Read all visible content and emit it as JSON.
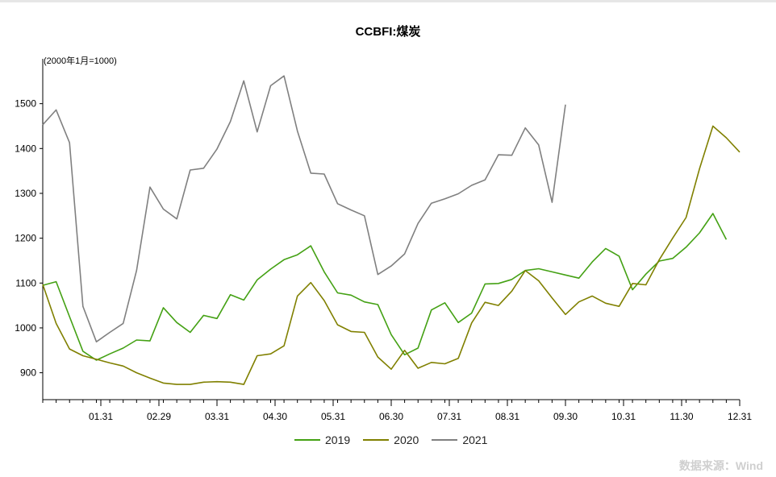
{
  "chart_data": {
    "type": "line",
    "title": "CCBFI:煤炭",
    "unit_note": "(2000年1月=1000)",
    "xlabel": "",
    "ylabel": "",
    "x_tick_labels": [
      "01.31",
      "02.29",
      "03.31",
      "04.30",
      "05.31",
      "06.30",
      "07.31",
      "08.31",
      "09.30",
      "10.31",
      "11.30",
      "12.31"
    ],
    "y_ticks": [
      900,
      1000,
      1100,
      1200,
      1300,
      1400,
      1500
    ],
    "ylim": [
      840,
      1600
    ],
    "xlim": [
      0,
      52
    ],
    "grid": false,
    "legend_position": "bottom-center",
    "series": [
      {
        "name": "2019",
        "color": "#44a114",
        "x": [
          0,
          1,
          2,
          3,
          4,
          5,
          6,
          7,
          8,
          9,
          10,
          11,
          12,
          13,
          14,
          15,
          16,
          17,
          18,
          19,
          20,
          21,
          22,
          23,
          24,
          25,
          26,
          27,
          28,
          29,
          30,
          31,
          32,
          33,
          34,
          35,
          36,
          37,
          38,
          39,
          40,
          41,
          42,
          43,
          44,
          45,
          46,
          47,
          48,
          49,
          50,
          51
        ],
        "values": [
          1095,
          1103,
          1025,
          948,
          928,
          942,
          955,
          973,
          971,
          1045,
          1012,
          990,
          1028,
          1021,
          1074,
          1062,
          1107,
          1131,
          1152,
          1163,
          1183,
          1125,
          1078,
          1073,
          1058,
          1052,
          985,
          940,
          955,
          1040,
          1056,
          1012,
          1033,
          1098,
          1099,
          1108,
          1128,
          1132,
          1125,
          1118,
          1111,
          1147,
          1177,
          1160,
          1085,
          1120,
          1149,
          1155,
          1180,
          1212,
          1255,
          1197
        ]
      },
      {
        "name": "2020",
        "color": "#808000",
        "x": [
          0,
          1,
          2,
          3,
          4,
          5,
          6,
          7,
          8,
          9,
          10,
          11,
          12,
          13,
          14,
          15,
          16,
          17,
          18,
          19,
          20,
          21,
          22,
          23,
          24,
          25,
          26,
          27,
          28,
          29,
          30,
          31,
          32,
          33,
          34,
          35,
          36,
          37,
          38,
          39,
          40,
          41,
          42,
          43,
          44,
          45,
          46,
          47,
          48,
          49,
          50,
          51,
          52
        ],
        "values": [
          1097,
          1010,
          953,
          938,
          930,
          922,
          915,
          900,
          888,
          877,
          874,
          874,
          879,
          880,
          879,
          874,
          938,
          942,
          960,
          1071,
          1101,
          1061,
          1007,
          992,
          990,
          935,
          908,
          950,
          910,
          923,
          920,
          932,
          1011,
          1057,
          1050,
          1082,
          1128,
          1105,
          1067,
          1030,
          1058,
          1071,
          1055,
          1048,
          1099,
          1096,
          1152,
          1200,
          1246,
          1355,
          1450,
          1424,
          1392
        ]
      },
      {
        "name": "2021",
        "color": "#808080",
        "x": [
          0,
          1,
          2,
          3,
          4,
          5,
          6,
          7,
          8,
          9,
          10,
          11,
          12,
          13,
          14,
          15,
          16,
          17,
          18,
          19,
          20,
          21,
          22,
          23,
          24,
          25,
          26,
          27,
          28,
          29,
          30,
          31,
          32,
          33,
          34,
          35,
          36,
          37,
          38,
          39
        ],
        "values": [
          1453,
          1486,
          1413,
          1048,
          969,
          990,
          1010,
          1128,
          1314,
          1265,
          1243,
          1352,
          1356,
          1399,
          1460,
          1551,
          1437,
          1540,
          1562,
          1439,
          1345,
          1343,
          1277,
          1263,
          1250,
          1119,
          1138,
          1165,
          1233,
          1278,
          1288,
          1299,
          1318,
          1330,
          1386,
          1385,
          1446,
          1408,
          1280,
          1498
        ]
      }
    ]
  },
  "legend": {
    "label_2019": "2019",
    "label_2020": "2020",
    "label_2021": "2021"
  },
  "source": "数据来源：Wind"
}
